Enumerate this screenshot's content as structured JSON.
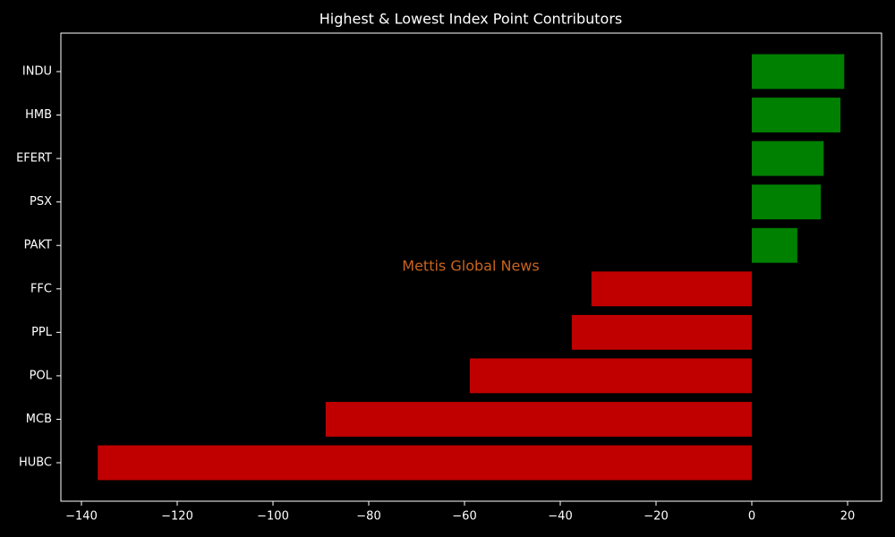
{
  "chart_data": {
    "type": "barh",
    "title": "Highest & Lowest Index Point Contributors",
    "annotation": "Mettis Global News",
    "categories": [
      "INDU",
      "HMB",
      "EFERT",
      "PSX",
      "PAKT",
      "FFC",
      "PPL",
      "POL",
      "MCB",
      "HUBC"
    ],
    "values": [
      19.3,
      18.5,
      15.0,
      14.4,
      9.5,
      -33.5,
      -37.6,
      -58.9,
      -89.0,
      -136.6
    ],
    "colors": [
      "#008000",
      "#008000",
      "#008000",
      "#008000",
      "#008000",
      "#c00000",
      "#c00000",
      "#c00000",
      "#c00000",
      "#c00000"
    ],
    "xlim": [
      -144.3,
      27.1
    ],
    "xticks": [
      {
        "value": -140,
        "label": "−140"
      },
      {
        "value": -120,
        "label": "−120"
      },
      {
        "value": -100,
        "label": "−100"
      },
      {
        "value": -80,
        "label": "−80"
      },
      {
        "value": -60,
        "label": "−60"
      },
      {
        "value": -40,
        "label": "−40"
      },
      {
        "value": -20,
        "label": "−20"
      },
      0,
      20
    ],
    "grid": false
  }
}
